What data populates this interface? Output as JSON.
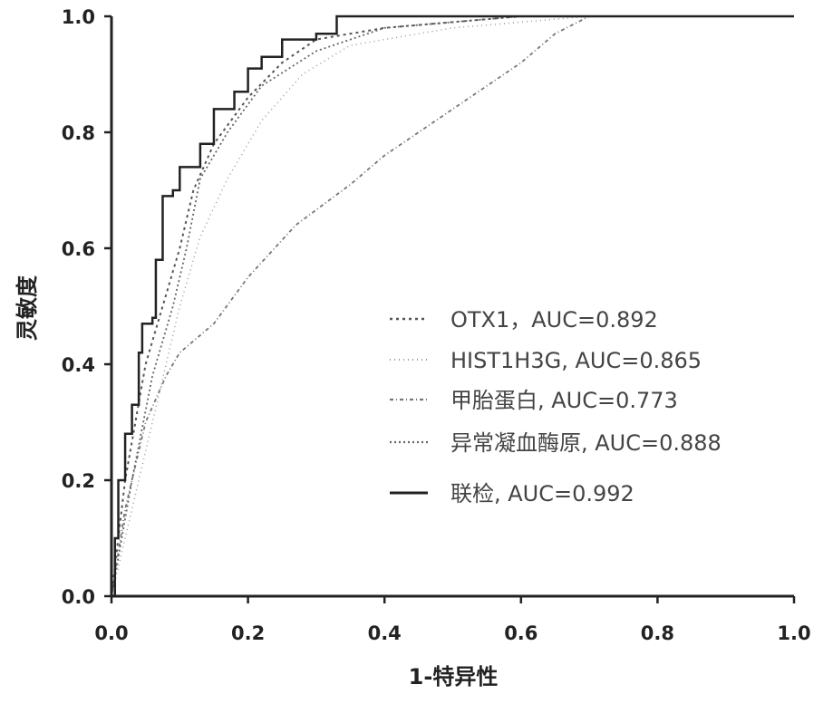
{
  "chart_data": {
    "type": "line",
    "title": "",
    "xlabel": "1-特异性",
    "ylabel": "灵敏度",
    "xlim": [
      0,
      1
    ],
    "ylim": [
      0,
      1
    ],
    "xticks": [
      "0.0",
      "0.2",
      "0.4",
      "0.6",
      "0.8",
      "1.0"
    ],
    "yticks": [
      "0.0",
      "0.2",
      "0.4",
      "0.6",
      "0.8",
      "1.0"
    ],
    "grid": false,
    "legend_position": "bottom-right",
    "series": [
      {
        "name": "OTX1，AUC=0.892",
        "style": "dashed",
        "color": "#555555",
        "x": [
          0,
          0.02,
          0.05,
          0.08,
          0.1,
          0.12,
          0.15,
          0.2,
          0.25,
          0.3,
          0.4,
          0.6,
          1
        ],
        "y": [
          0,
          0.2,
          0.4,
          0.52,
          0.6,
          0.7,
          0.78,
          0.86,
          0.92,
          0.96,
          0.98,
          1,
          1
        ]
      },
      {
        "name": "HIST1H3G, AUC=0.865",
        "style": "dotted",
        "color": "#999999",
        "x": [
          0,
          0.03,
          0.06,
          0.1,
          0.13,
          0.17,
          0.22,
          0.28,
          0.35,
          0.5,
          0.7,
          1
        ],
        "y": [
          0,
          0.15,
          0.3,
          0.5,
          0.62,
          0.72,
          0.82,
          0.9,
          0.95,
          0.98,
          1,
          1
        ]
      },
      {
        "name": "甲胎蛋白, AUC=0.773",
        "style": "dashdot",
        "color": "#777777",
        "x": [
          0,
          0.02,
          0.05,
          0.08,
          0.1,
          0.15,
          0.2,
          0.27,
          0.35,
          0.4,
          0.45,
          0.55,
          0.6,
          0.65,
          0.7,
          1
        ],
        "y": [
          0,
          0.15,
          0.3,
          0.38,
          0.42,
          0.47,
          0.55,
          0.64,
          0.71,
          0.76,
          0.8,
          0.88,
          0.92,
          0.97,
          1,
          1
        ]
      },
      {
        "name": "异常凝血酶原, AUC=0.888",
        "style": "dashed-fine",
        "color": "#666666",
        "x": [
          0,
          0.03,
          0.06,
          0.09,
          0.11,
          0.13,
          0.17,
          0.22,
          0.3,
          0.4,
          0.6,
          1
        ],
        "y": [
          0,
          0.2,
          0.38,
          0.5,
          0.6,
          0.72,
          0.8,
          0.88,
          0.94,
          0.98,
          1,
          1
        ]
      },
      {
        "name": "联检, AUC=0.992",
        "style": "solid",
        "color": "#222222",
        "x": [
          0,
          0.005,
          0.01,
          0.02,
          0.03,
          0.04,
          0.045,
          0.06,
          0.065,
          0.075,
          0.075,
          0.09,
          0.1,
          0.13,
          0.15,
          0.18,
          0.2,
          0.22,
          0.25,
          0.3,
          0.33,
          1
        ],
        "y": [
          0,
          0.1,
          0.2,
          0.28,
          0.33,
          0.42,
          0.47,
          0.48,
          0.58,
          0.58,
          0.69,
          0.7,
          0.74,
          0.78,
          0.84,
          0.87,
          0.91,
          0.93,
          0.96,
          0.97,
          1,
          1
        ]
      }
    ]
  }
}
